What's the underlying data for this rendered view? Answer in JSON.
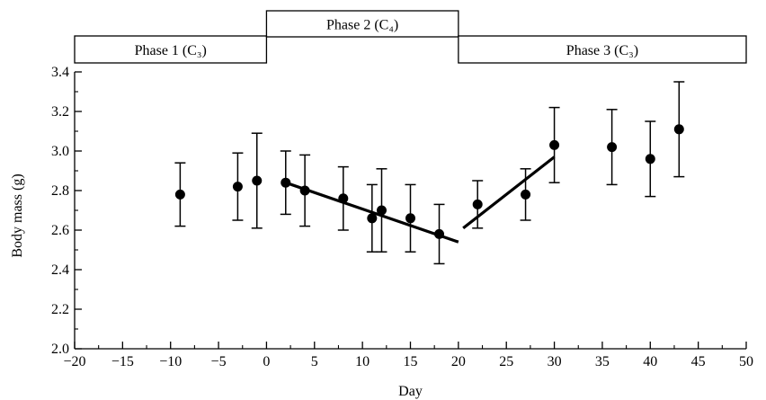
{
  "chart_data": {
    "type": "scatter",
    "xlabel": "Day",
    "ylabel": "Body mass (g)",
    "xlim": [
      -20,
      50
    ],
    "ylim": [
      2.0,
      3.4
    ],
    "x_ticks": [
      "−20",
      "−15",
      "−10",
      "−5",
      "0",
      "5",
      "10",
      "15",
      "20",
      "25",
      "30",
      "35",
      "40",
      "45",
      "50"
    ],
    "y_ticks": [
      "2.0",
      "2.2",
      "2.4",
      "2.6",
      "2.8",
      "3.0",
      "3.2",
      "3.4"
    ],
    "phases": [
      {
        "label": "Phase 1 (C₃)",
        "start": -20,
        "end": 0
      },
      {
        "label": "Phase 2 (C₄)",
        "start": 0,
        "end": 20
      },
      {
        "label": "Phase 3 (C₃)",
        "start": 20,
        "end": 50
      }
    ],
    "points": [
      {
        "x": -9,
        "y": 2.78,
        "low": 2.62,
        "high": 2.94
      },
      {
        "x": -3,
        "y": 2.82,
        "low": 2.65,
        "high": 2.99
      },
      {
        "x": -1,
        "y": 2.85,
        "low": 2.61,
        "high": 3.09
      },
      {
        "x": 2,
        "y": 2.84,
        "low": 2.68,
        "high": 3.0
      },
      {
        "x": 4,
        "y": 2.8,
        "low": 2.62,
        "high": 2.98
      },
      {
        "x": 8,
        "y": 2.76,
        "low": 2.6,
        "high": 2.92
      },
      {
        "x": 11,
        "y": 2.66,
        "low": 2.49,
        "high": 2.83
      },
      {
        "x": 12,
        "y": 2.7,
        "low": 2.49,
        "high": 2.91
      },
      {
        "x": 15,
        "y": 2.66,
        "low": 2.49,
        "high": 2.83
      },
      {
        "x": 18,
        "y": 2.58,
        "low": 2.43,
        "high": 2.73
      },
      {
        "x": 22,
        "y": 2.73,
        "low": 2.61,
        "high": 2.85
      },
      {
        "x": 27,
        "y": 2.78,
        "low": 2.65,
        "high": 2.91
      },
      {
        "x": 30,
        "y": 3.03,
        "low": 2.84,
        "high": 3.22
      },
      {
        "x": 36,
        "y": 3.02,
        "low": 2.83,
        "high": 3.21
      },
      {
        "x": 40,
        "y": 2.96,
        "low": 2.77,
        "high": 3.15
      },
      {
        "x": 43,
        "y": 3.11,
        "low": 2.87,
        "high": 3.35
      }
    ],
    "trend_lines": [
      {
        "x1": 2,
        "y1": 2.84,
        "x2": 20,
        "y2": 2.54
      },
      {
        "x1": 20.5,
        "y1": 2.61,
        "x2": 30,
        "y2": 2.97
      }
    ],
    "grid": false,
    "legend": "none"
  }
}
